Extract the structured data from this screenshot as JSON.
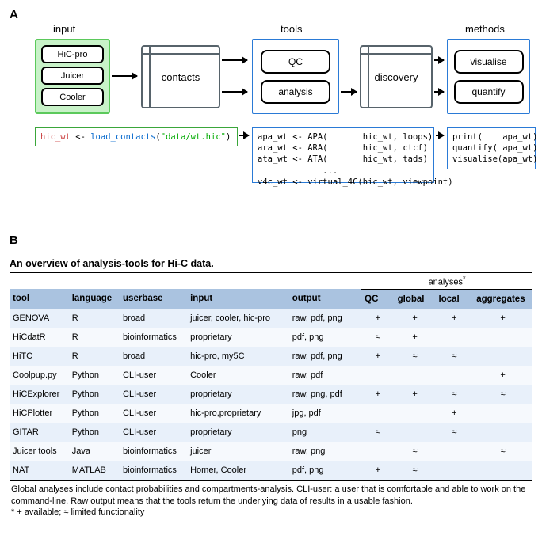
{
  "panelA": {
    "label": "A",
    "headings": {
      "input": "input",
      "tools": "tools",
      "methods": "methods"
    },
    "inputs": [
      "HiC-pro",
      "Juicer",
      "Cooler"
    ],
    "contacts": "contacts",
    "tools": [
      "QC",
      "analysis"
    ],
    "discovery": "discovery",
    "methods": [
      "visualise",
      "quantify"
    ],
    "code_input": "hic_wt <- load_contacts(\"data/wt.hic\")",
    "code_tools": "apa_wt <- APA(       hic_wt, loops)\nara_wt <- ARA(       hic_wt, ctcf)\nata_wt <- ATA(       hic_wt, tads)\n             ...\nv4c_wt <- virtual_4C(hic_wt, viewpoint)",
    "code_methods": "print(    apa_wt)\nquantify( apa_wt)\nvisualise(apa_wt)",
    "colors": {
      "input_border": "#5bc95b",
      "input_fill": "#c8f2c8",
      "blue_border": "#2a7ad6",
      "db_border": "#57636b"
    }
  },
  "panelB": {
    "label": "B",
    "title": "An overview of analysis-tools for Hi-C data.",
    "superheader": "analyses",
    "superheader_note": "*",
    "columns": [
      "tool",
      "language",
      "userbase",
      "input",
      "output",
      "QC",
      "global",
      "local",
      "aggregates"
    ],
    "rows": [
      [
        "GENOVA",
        "R",
        "broad",
        "juicer, cooler, hic-pro",
        "raw, pdf, png",
        "+",
        "+",
        "+",
        "+"
      ],
      [
        "HiCdatR",
        "R",
        "bioinformatics",
        "proprietary",
        "pdf, png",
        "≈",
        "+",
        "",
        ""
      ],
      [
        "HiTC",
        "R",
        "broad",
        "hic-pro, my5C",
        "raw, pdf, png",
        "+",
        "≈",
        "≈",
        ""
      ],
      [
        "Coolpup.py",
        "Python",
        "CLI-user",
        "Cooler",
        "raw, pdf",
        "",
        "",
        "",
        "+"
      ],
      [
        "HiCExplorer",
        "Python",
        "CLI-user",
        "proprietary",
        "raw, png, pdf",
        "+",
        "+",
        "≈",
        "≈"
      ],
      [
        "HiCPlotter",
        "Python",
        "CLI-user",
        "hic-pro,proprietary",
        "jpg, pdf",
        "",
        "",
        "+",
        ""
      ],
      [
        "GITAR",
        "Python",
        "CLI-user",
        "proprietary",
        "png",
        "≈",
        "",
        "≈",
        ""
      ],
      [
        "Juicer tools",
        "Java",
        "bioinformatics",
        "juicer",
        "raw, png",
        "",
        "≈",
        "",
        "≈"
      ],
      [
        "NAT",
        "MATLAB",
        "bioinformatics",
        "Homer, Cooler",
        "pdf, png",
        "+",
        "≈",
        "",
        ""
      ]
    ],
    "footnote": "Global analyses include contact probabilities and compartments-analysis. CLI-user: a user that is comfortable and able to work on the command-line. Raw output means that the tools return the underlying data of results in a usable fashion.\n* + available; ≈ limited functionality",
    "colors": {
      "header_bg": "#aac3e0",
      "row_odd": "#e8f0fa",
      "row_even": "#f6f9fd",
      "rule": "#000000"
    }
  }
}
